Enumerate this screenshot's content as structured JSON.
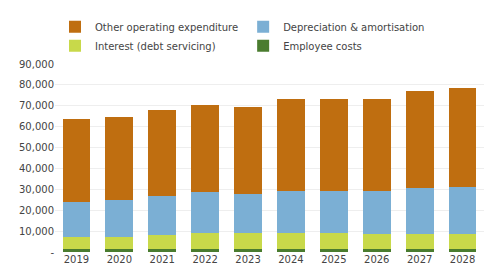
{
  "chart_data": {
    "type": "bar",
    "stacked": true,
    "categories": [
      "2019",
      "2020",
      "2021",
      "2022",
      "2023",
      "2024",
      "2025",
      "2026",
      "2027",
      "2028"
    ],
    "series": [
      {
        "name": "Employee costs",
        "color": "#4a7c2f",
        "values": [
          1500,
          1500,
          1500,
          1500,
          1500,
          1500,
          1500,
          1500,
          1500,
          1500
        ]
      },
      {
        "name": "Interest (debt servicing)",
        "color": "#c8d94a",
        "values": [
          5500,
          5800,
          6500,
          7500,
          7500,
          7800,
          7500,
          7200,
          7200,
          7200
        ]
      },
      {
        "name": "Depreciation & amortisation",
        "color": "#7bafd4",
        "values": [
          17000,
          17700,
          19000,
          19500,
          18800,
          20000,
          20300,
          20500,
          22000,
          22500
        ]
      },
      {
        "name": "Other operating expenditure",
        "color": "#bf6e10",
        "values": [
          39500,
          39500,
          41000,
          42000,
          41500,
          44000,
          44000,
          44000,
          46500,
          47500
        ]
      }
    ],
    "ylim": [
      0,
      90000
    ],
    "yticks": [
      {
        "value": 0,
        "label": "-"
      },
      {
        "value": 10000,
        "label": "10,000"
      },
      {
        "value": 20000,
        "label": "20,000"
      },
      {
        "value": 30000,
        "label": "30,000"
      },
      {
        "value": 40000,
        "label": "40,000"
      },
      {
        "value": 50000,
        "label": "50,000"
      },
      {
        "value": 60000,
        "label": "60,000"
      },
      {
        "value": 70000,
        "label": "70,000"
      },
      {
        "value": 80000,
        "label": "80,000"
      },
      {
        "value": 90000,
        "label": "90,000"
      }
    ],
    "grid": true,
    "legend": "upper left"
  }
}
